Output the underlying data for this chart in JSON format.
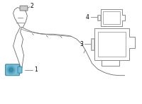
{
  "bg_color": "#ffffff",
  "line_color": "#6a6a6a",
  "part_color": "#4a9ab5",
  "bracket_color": "#8a8a8a",
  "label_color": "#000000",
  "fig_width": 2.0,
  "fig_height": 1.47,
  "dpi": 100
}
